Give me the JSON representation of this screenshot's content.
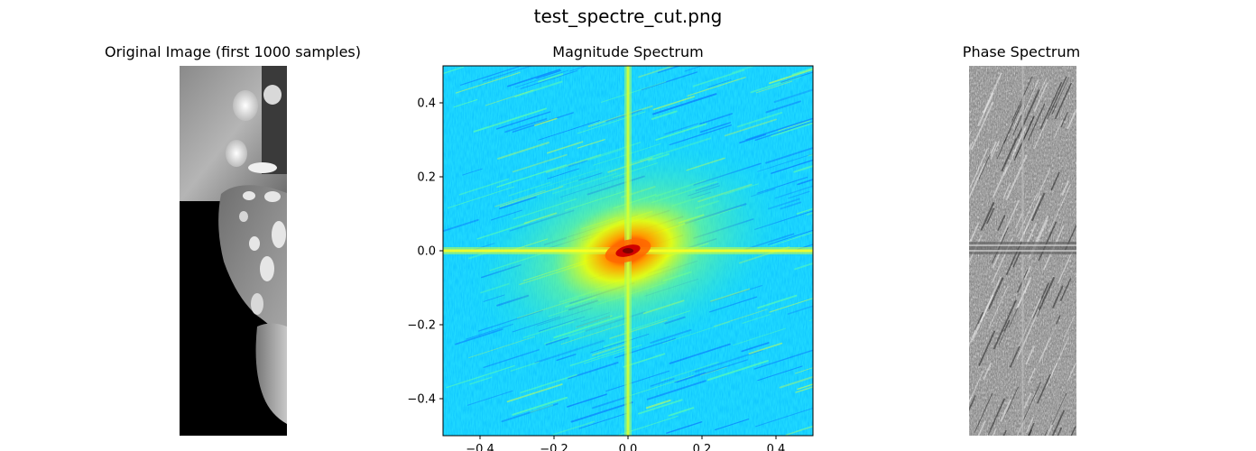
{
  "figure": {
    "suptitle": "test_spectre_cut.png"
  },
  "panels": {
    "original": {
      "title": "Original Image (first 1000 samples)"
    },
    "magnitude": {
      "title": "Magnitude Spectrum"
    },
    "phase": {
      "title": "Phase Spectrum"
    }
  },
  "chart_data": [
    {
      "type": "other",
      "panel": "original",
      "title": "Original Image (first 1000 samples)",
      "colormap": "gray",
      "axes_visible": false,
      "description_colors": {
        "background": "#000000"
      }
    },
    {
      "type": "heatmap",
      "panel": "magnitude",
      "title": "Magnitude Spectrum",
      "colormap": "jet",
      "xlim": [
        -0.5,
        0.5
      ],
      "ylim": [
        -0.5,
        0.5
      ],
      "xticks": [
        -0.4,
        -0.2,
        0.0,
        0.2,
        0.4
      ],
      "yticks": [
        -0.4,
        -0.2,
        0.0,
        0.2,
        0.4
      ],
      "xtick_labels": [
        "−0.4",
        "−0.2",
        "0.0",
        "0.2",
        "0.4"
      ],
      "ytick_labels": [
        "−0.4",
        "−0.2",
        "0.0",
        "0.2",
        "0.4"
      ],
      "grid": false,
      "peak": [
        0.0,
        0.0
      ]
    },
    {
      "type": "other",
      "panel": "phase",
      "title": "Phase Spectrum",
      "colormap": "gray",
      "axes_visible": false
    }
  ]
}
